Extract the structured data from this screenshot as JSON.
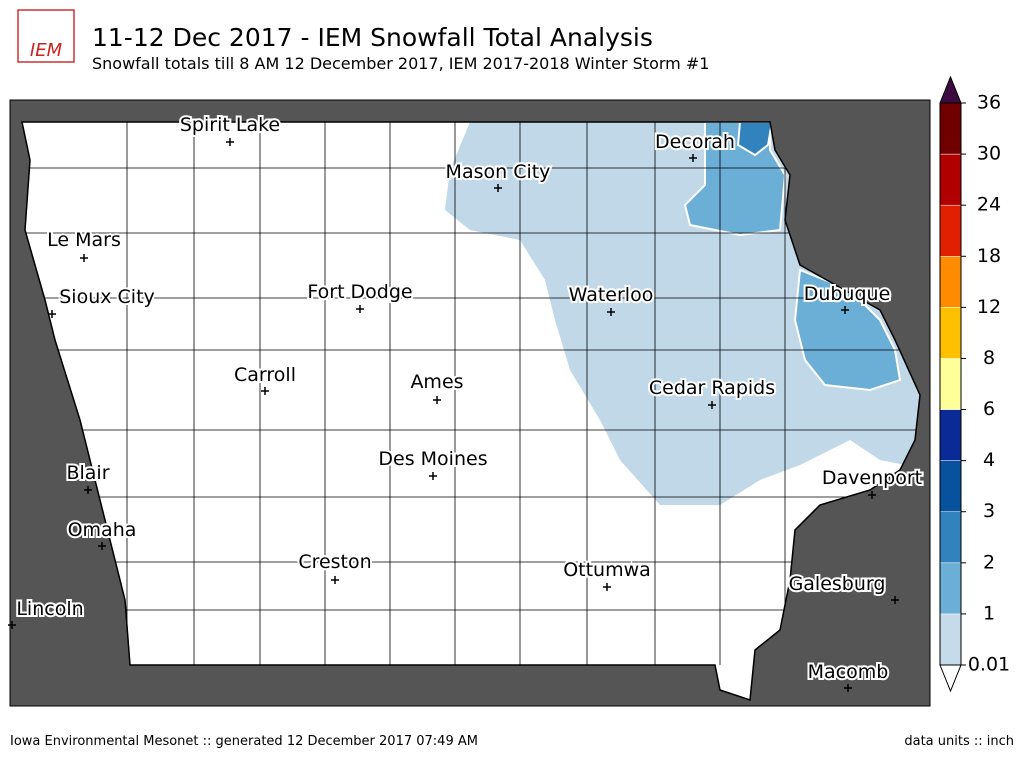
{
  "header": {
    "title": "11-12 Dec 2017 - IEM Snowfall Total Analysis",
    "subtitle": "Snowfall totals till 8 AM 12 December 2017, IEM 2017-2018 Winter Storm #1",
    "logo": "IEM"
  },
  "cities": [
    "Spirit Lake",
    "Decorah",
    "Mason City",
    "Le Mars",
    "Sioux City",
    "Fort Dodge",
    "Waterloo",
    "Dubuque",
    "Carroll",
    "Ames",
    "Cedar Rapids",
    "Des Moines",
    "Blair",
    "Davenport",
    "Omaha",
    "Creston",
    "Ottumwa",
    "Galesburg",
    "Lincoln",
    "Macomb"
  ],
  "colorbar": {
    "levels": [
      0.01,
      1,
      2,
      3,
      4,
      6,
      8,
      12,
      18,
      24,
      30,
      36
    ],
    "colors": [
      "#c6dbea",
      "#6baed6",
      "#3182bd",
      "#08519c",
      "#0c2a95",
      "#ffff99",
      "#ffc000",
      "#ff8c00",
      "#e02000",
      "#b00000",
      "#700000"
    ]
  },
  "footer": {
    "left": "Iowa Environmental Mesonet :: generated 12 December 2017 07:49 AM",
    "right": "data units :: inch"
  }
}
